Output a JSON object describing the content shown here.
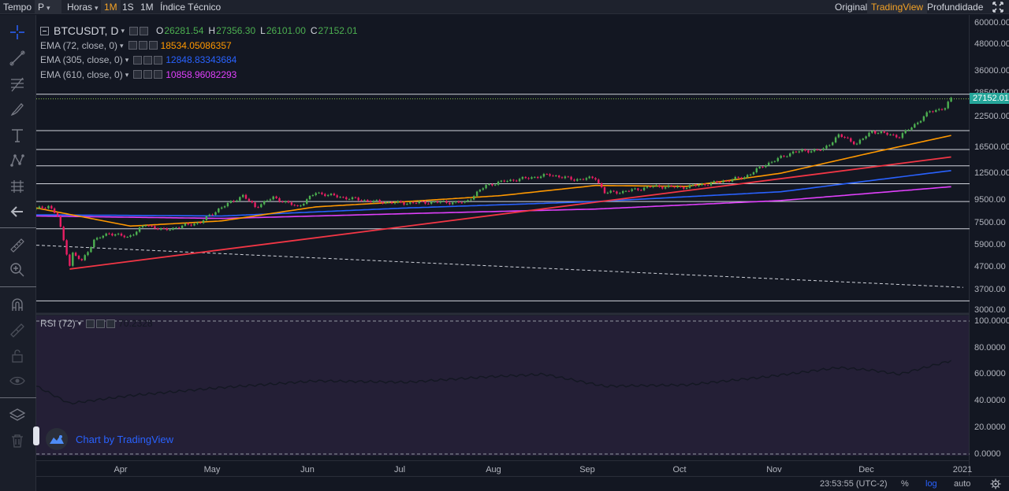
{
  "toolbar": {
    "time_label": "Tempo",
    "style_select": "P",
    "hours_select": "Horas",
    "intervals": [
      "1M",
      "1S",
      "1M"
    ],
    "active_interval_index": 0,
    "indicators_label": "Índice Técnico",
    "views": [
      "Original",
      "TradingView",
      "Profundidade"
    ],
    "active_view_index": 1,
    "expand_icon": "expand-icon"
  },
  "left_tools": [
    "crosshair-icon",
    "trend-line-icon",
    "fib-tool-icon",
    "brush-icon",
    "text-icon",
    "pattern-icon",
    "prediction-icon",
    "back-arrow-icon",
    "ruler-icon",
    "zoom-in-icon",
    "magnet-icon",
    "lock-drawing-icon",
    "lock-icon",
    "eye-icon",
    "layers-icon",
    "trash-icon"
  ],
  "legend": {
    "symbol": "BTCUSDT, D",
    "open_label": "O",
    "open": "26281.54",
    "high_label": "H",
    "high": "27356.30",
    "low_label": "L",
    "low": "26101.00",
    "close_label": "C",
    "close": "27152.01",
    "emas": [
      {
        "name": "EMA (72, close, 0)",
        "value": "18534.05086357",
        "color": "#ff9800"
      },
      {
        "name": "EMA (305, close, 0)",
        "value": "12848.83343684",
        "color": "#2962ff"
      },
      {
        "name": "EMA (610, close, 0)",
        "value": "10858.96082293",
        "color": "#e040fb"
      }
    ]
  },
  "rsi": {
    "name": "RSI (72)",
    "value": "70.2328"
  },
  "price_scale": {
    "ticks": [
      "60000.00",
      "48000.00",
      "36000.00",
      "28500.00",
      "22500.00",
      "16500.00",
      "12500.00",
      "9500.00",
      "7500.00",
      "5900.00",
      "4700.00",
      "3700.00",
      "3000.00"
    ],
    "last_price": "27152.01"
  },
  "rsi_scale": {
    "ticks": [
      "100.0000",
      "80.0000",
      "60.0000",
      "40.0000",
      "20.0000",
      "0.0000"
    ]
  },
  "time_axis": {
    "labels": [
      "Apr",
      "May",
      "Jun",
      "Jul",
      "Aug",
      "Sep",
      "Oct",
      "Nov",
      "Dec",
      "2021"
    ]
  },
  "bottom_bar": {
    "clock": "23:53:55 (UTC-2)",
    "percent": "%",
    "log": "log",
    "auto": "auto",
    "settings_icon": "gear-icon"
  },
  "watermark": {
    "text": "Chart by TradingView"
  },
  "colors": {
    "bg": "#131722",
    "rsi_bg": "#241f36",
    "up": "#4caf50",
    "down": "#e91e63",
    "ema72": "#ff9800",
    "ema305": "#2962ff",
    "ema610": "#e040fb",
    "trend": "#f23645",
    "accent": "#f4a225"
  },
  "chart_data": {
    "type": "candlestick",
    "symbol": "BTCUSDT",
    "interval": "D",
    "y_scale": "log",
    "ylim": [
      3000,
      60000
    ],
    "x_start": "2020-03-01",
    "x_end": "2020-12-31",
    "close_series": [
      [
        "2020-03-01",
        8600
      ],
      [
        "2020-03-05",
        8900
      ],
      [
        "2020-03-08",
        8000
      ],
      [
        "2020-03-12",
        4800
      ],
      [
        "2020-03-13",
        5400
      ],
      [
        "2020-03-16",
        5000
      ],
      [
        "2020-03-20",
        6200
      ],
      [
        "2020-03-25",
        6700
      ],
      [
        "2020-03-31",
        6400
      ],
      [
        "2020-04-06",
        7300
      ],
      [
        "2020-04-12",
        6900
      ],
      [
        "2020-04-18",
        7200
      ],
      [
        "2020-04-24",
        7500
      ],
      [
        "2020-04-30",
        8600
      ],
      [
        "2020-05-08",
        9900
      ],
      [
        "2020-05-12",
        8800
      ],
      [
        "2020-05-18",
        9700
      ],
      [
        "2020-05-26",
        8800
      ],
      [
        "2020-06-01",
        10200
      ],
      [
        "2020-06-10",
        9700
      ],
      [
        "2020-06-20",
        9300
      ],
      [
        "2020-06-30",
        9150
      ],
      [
        "2020-07-10",
        9250
      ],
      [
        "2020-07-20",
        9200
      ],
      [
        "2020-07-27",
        11000
      ],
      [
        "2020-08-02",
        11500
      ],
      [
        "2020-08-10",
        11900
      ],
      [
        "2020-08-17",
        12300
      ],
      [
        "2020-08-25",
        11700
      ],
      [
        "2020-09-01",
        11900
      ],
      [
        "2020-09-04",
        10200
      ],
      [
        "2020-09-10",
        10300
      ],
      [
        "2020-09-20",
        10900
      ],
      [
        "2020-09-30",
        10800
      ],
      [
        "2020-10-10",
        11300
      ],
      [
        "2020-10-20",
        12000
      ],
      [
        "2020-10-27",
        13700
      ],
      [
        "2020-11-05",
        15600
      ],
      [
        "2020-11-15",
        16000
      ],
      [
        "2020-11-20",
        18600
      ],
      [
        "2020-11-26",
        17000
      ],
      [
        "2020-12-01",
        19400
      ],
      [
        "2020-12-10",
        18300
      ],
      [
        "2020-12-16",
        21300
      ],
      [
        "2020-12-20",
        23800
      ],
      [
        "2020-12-25",
        24700
      ],
      [
        "2020-12-27",
        27152
      ]
    ],
    "ema72": [
      [
        "2020-03-01",
        8700
      ],
      [
        "2020-04-01",
        7200
      ],
      [
        "2020-05-01",
        7600
      ],
      [
        "2020-06-01",
        8800
      ],
      [
        "2020-07-01",
        9300
      ],
      [
        "2020-08-01",
        9900
      ],
      [
        "2020-09-01",
        11000
      ],
      [
        "2020-10-01",
        10900
      ],
      [
        "2020-11-01",
        12500
      ],
      [
        "2020-12-01",
        15500
      ],
      [
        "2020-12-27",
        18534
      ]
    ],
    "ema305": [
      [
        "2020-03-01",
        8100
      ],
      [
        "2020-05-01",
        8000
      ],
      [
        "2020-07-01",
        8700
      ],
      [
        "2020-09-01",
        9300
      ],
      [
        "2020-11-01",
        10300
      ],
      [
        "2020-12-27",
        12848
      ]
    ],
    "ema610": [
      [
        "2020-03-01",
        8000
      ],
      [
        "2020-05-01",
        7800
      ],
      [
        "2020-07-01",
        8200
      ],
      [
        "2020-09-01",
        8600
      ],
      [
        "2020-11-01",
        9400
      ],
      [
        "2020-12-27",
        10858
      ]
    ],
    "rsi72": [
      [
        "2020-03-01",
        51
      ],
      [
        "2020-03-12",
        38
      ],
      [
        "2020-04-01",
        44
      ],
      [
        "2020-05-01",
        50
      ],
      [
        "2020-06-01",
        55
      ],
      [
        "2020-07-01",
        54
      ],
      [
        "2020-07-27",
        58
      ],
      [
        "2020-08-15",
        60
      ],
      [
        "2020-09-04",
        51
      ],
      [
        "2020-10-01",
        52
      ],
      [
        "2020-10-27",
        58
      ],
      [
        "2020-11-20",
        65
      ],
      [
        "2020-12-01",
        63
      ],
      [
        "2020-12-10",
        60
      ],
      [
        "2020-12-20",
        66
      ],
      [
        "2020-12-27",
        70.23
      ]
    ],
    "horizontal_levels": [
      28500,
      19500,
      16000,
      13500,
      11200,
      9300,
      7000,
      3300
    ],
    "trend_line": [
      [
        "2020-03-12",
        4600
      ],
      [
        "2020-12-27",
        14800
      ]
    ],
    "dashed_line": [
      [
        "2020-03-01",
        5900
      ],
      [
        "2020-12-31",
        3800
      ]
    ]
  }
}
